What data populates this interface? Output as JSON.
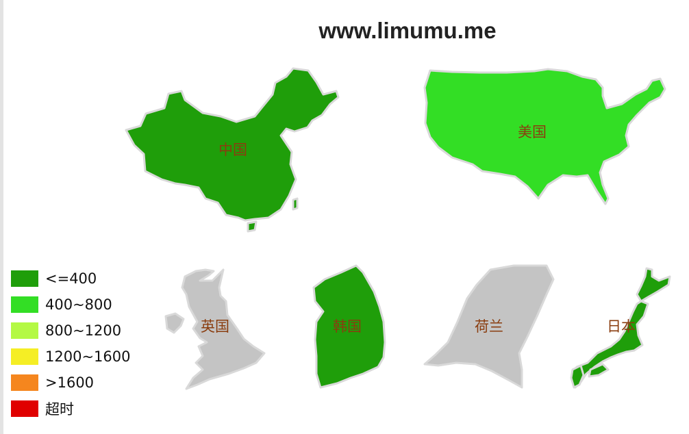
{
  "title": "www.limumu.me",
  "colors": {
    "le400": "#1f9e0a",
    "r400_800": "#33de25",
    "r800_1200": "#b4f944",
    "r1200_1600": "#f5ee25",
    "gt1600": "#f5861e",
    "timeout": "#e00000",
    "nodata": "#c4c4c4",
    "border": "#d9d9d9",
    "label": "#8a3d0f"
  },
  "countries": [
    {
      "id": "china",
      "label": "中国",
      "category": "<=400"
    },
    {
      "id": "usa",
      "label": "美国",
      "category": "400~800"
    },
    {
      "id": "uk",
      "label": "英国",
      "category": ""
    },
    {
      "id": "korea",
      "label": "韩国",
      "category": "<=400"
    },
    {
      "id": "netherlands",
      "label": "荷兰",
      "category": ""
    },
    {
      "id": "japan",
      "label": "日本",
      "category": "<=400"
    }
  ],
  "legend": [
    {
      "label": "<=400",
      "color": "#1f9e0a"
    },
    {
      "label": "400~800",
      "color": "#33de25"
    },
    {
      "label": "800~1200",
      "color": "#b4f944"
    },
    {
      "label": "1200~1600",
      "color": "#f5ee25"
    },
    {
      "label": ">1600",
      "color": "#f5861e"
    },
    {
      "label": "超时",
      "color": "#e00000"
    }
  ]
}
